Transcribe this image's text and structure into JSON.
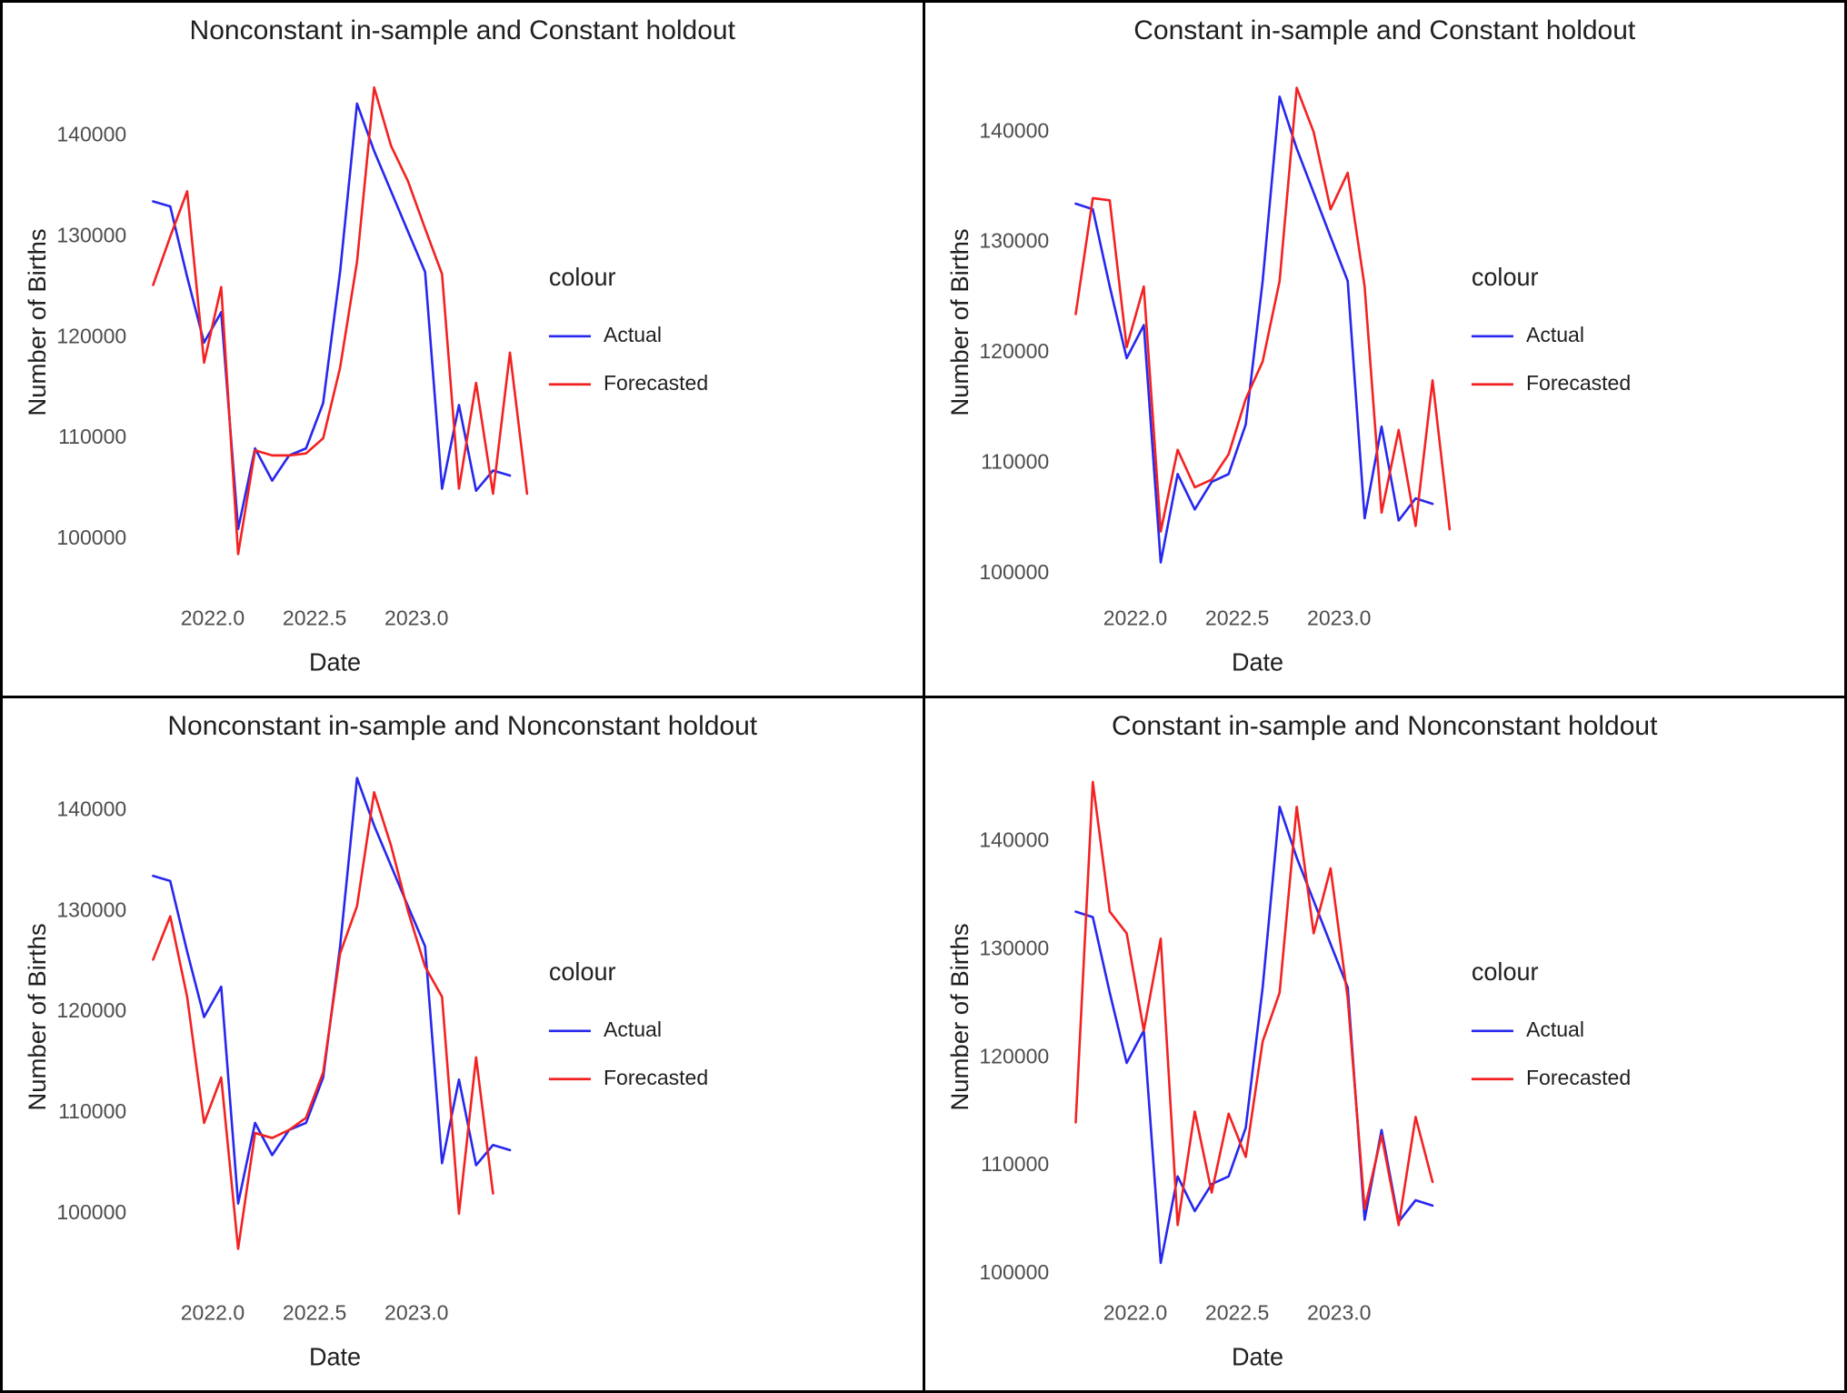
{
  "page": {
    "background": "#ffffff",
    "frame_color": "#000000"
  },
  "text_colors": {
    "title": "#1f1f1f",
    "axis_title": "#1f1f1f",
    "tick_label": "#4d4d4d",
    "legend_title": "#1f1f1f",
    "legend_label": "#1f1f1f"
  },
  "legend": {
    "title": "colour",
    "entries": [
      {
        "label": "Actual",
        "color": "#2727ee"
      },
      {
        "label": "Forecasted",
        "color": "#f32222"
      }
    ]
  },
  "chart_data": [
    {
      "type": "line",
      "title": "Nonconstant in-sample and Constant holdout",
      "xlabel": "Date",
      "ylabel": "Number of Births",
      "legend_title": "colour",
      "legend_position": "right",
      "grid": false,
      "xlim": [
        2021.64,
        2023.56
      ],
      "ylim": [
        95500,
        147500
      ],
      "xticks": [
        2022.0,
        2022.5,
        2023.0
      ],
      "xtick_labels": [
        "2022.0",
        "2022.5",
        "2023.0"
      ],
      "yticks": [
        100000,
        110000,
        120000,
        130000,
        140000
      ],
      "ytick_labels": [
        "100000",
        "110000",
        "120000",
        "130000",
        "140000"
      ],
      "x": [
        2021.708,
        2021.792,
        2021.875,
        2021.958,
        2022.042,
        2022.125,
        2022.208,
        2022.292,
        2022.375,
        2022.458,
        2022.542,
        2022.625,
        2022.708,
        2022.792,
        2022.875,
        2022.958,
        2023.042,
        2023.125,
        2023.208,
        2023.292,
        2023.375,
        2023.458,
        2023.542
      ],
      "series": [
        {
          "name": "Actual",
          "color": "#2727ee",
          "values": [
            133500,
            133000,
            126000,
            119500,
            122500,
            101000,
            109000,
            105800,
            108300,
            109000,
            113500,
            126500,
            143200,
            138500,
            134500,
            130500,
            126500,
            105000,
            113300,
            104800,
            106800,
            106300,
            null
          ]
        },
        {
          "name": "Forecasted",
          "color": "#f32222",
          "values": [
            125200,
            130000,
            134500,
            117500,
            125000,
            98500,
            108800,
            108300,
            108300,
            108500,
            110000,
            117000,
            127500,
            144800,
            139000,
            135500,
            130800,
            126300,
            105000,
            115500,
            104500,
            118500,
            104500
          ]
        }
      ]
    },
    {
      "type": "line",
      "title": "Constant in-sample and Constant holdout",
      "xlabel": "Date",
      "ylabel": "Number of Births",
      "legend_title": "colour",
      "legend_position": "right",
      "grid": false,
      "xlim": [
        2021.64,
        2023.56
      ],
      "ylim": [
        99000,
        146500
      ],
      "xticks": [
        2022.0,
        2022.5,
        2023.0
      ],
      "xtick_labels": [
        "2022.0",
        "2022.5",
        "2023.0"
      ],
      "yticks": [
        100000,
        110000,
        120000,
        130000,
        140000
      ],
      "ytick_labels": [
        "100000",
        "110000",
        "120000",
        "130000",
        "140000"
      ],
      "x": [
        2021.708,
        2021.792,
        2021.875,
        2021.958,
        2022.042,
        2022.125,
        2022.208,
        2022.292,
        2022.375,
        2022.458,
        2022.542,
        2022.625,
        2022.708,
        2022.792,
        2022.875,
        2022.958,
        2023.042,
        2023.125,
        2023.208,
        2023.292,
        2023.375,
        2023.458,
        2023.542
      ],
      "series": [
        {
          "name": "Actual",
          "color": "#2727ee",
          "values": [
            133500,
            133000,
            126000,
            119500,
            122500,
            101000,
            109000,
            105800,
            108300,
            109000,
            113500,
            126500,
            143200,
            138500,
            134500,
            130500,
            126500,
            105000,
            113300,
            104800,
            106800,
            106300,
            null
          ]
        },
        {
          "name": "Forecasted",
          "color": "#f32222",
          "values": [
            123500,
            134000,
            133800,
            120500,
            126000,
            103800,
            111200,
            107800,
            108500,
            110800,
            115800,
            119200,
            126500,
            144000,
            140000,
            133000,
            136300,
            126000,
            105500,
            113000,
            104300,
            117500,
            104000
          ]
        }
      ]
    },
    {
      "type": "line",
      "title": "Nonconstant in-sample and Nonconstant holdout",
      "xlabel": "Date",
      "ylabel": "Number of Births",
      "legend_title": "colour",
      "legend_position": "right",
      "grid": false,
      "xlim": [
        2021.64,
        2023.56
      ],
      "ylim": [
        93500,
        145500
      ],
      "xticks": [
        2022.0,
        2022.5,
        2023.0
      ],
      "xtick_labels": [
        "2022.0",
        "2022.5",
        "2023.0"
      ],
      "yticks": [
        100000,
        110000,
        120000,
        130000,
        140000
      ],
      "ytick_labels": [
        "100000",
        "110000",
        "120000",
        "130000",
        "140000"
      ],
      "x": [
        2021.708,
        2021.792,
        2021.875,
        2021.958,
        2022.042,
        2022.125,
        2022.208,
        2022.292,
        2022.375,
        2022.458,
        2022.542,
        2022.625,
        2022.708,
        2022.792,
        2022.875,
        2022.958,
        2023.042,
        2023.125,
        2023.208,
        2023.292,
        2023.375,
        2023.458,
        2023.542
      ],
      "series": [
        {
          "name": "Actual",
          "color": "#2727ee",
          "values": [
            133500,
            133000,
            126000,
            119500,
            122500,
            101000,
            109000,
            105800,
            108300,
            109000,
            113500,
            126500,
            143200,
            138500,
            134500,
            130500,
            126500,
            105000,
            113300,
            104800,
            106800,
            106300,
            null
          ]
        },
        {
          "name": "Forecasted",
          "color": "#f32222",
          "values": [
            125200,
            129500,
            121500,
            109000,
            113500,
            96500,
            108000,
            107500,
            108300,
            109500,
            114000,
            125800,
            130500,
            141800,
            136500,
            130000,
            124500,
            121500,
            100000,
            115500,
            102000,
            null,
            null
          ]
        }
      ]
    },
    {
      "type": "line",
      "title": "Constant in-sample and Nonconstant holdout",
      "xlabel": "Date",
      "ylabel": "Number of Births",
      "legend_title": "colour",
      "legend_position": "right",
      "grid": false,
      "xlim": [
        2021.64,
        2023.56
      ],
      "ylim": [
        99500,
        148000
      ],
      "xticks": [
        2022.0,
        2022.5,
        2023.0
      ],
      "xtick_labels": [
        "2022.0",
        "2022.5",
        "2023.0"
      ],
      "yticks": [
        100000,
        110000,
        120000,
        130000,
        140000
      ],
      "ytick_labels": [
        "100000",
        "110000",
        "120000",
        "130000",
        "140000"
      ],
      "x": [
        2021.708,
        2021.792,
        2021.875,
        2021.958,
        2022.042,
        2022.125,
        2022.208,
        2022.292,
        2022.375,
        2022.458,
        2022.542,
        2022.625,
        2022.708,
        2022.792,
        2022.875,
        2022.958,
        2023.042,
        2023.125,
        2023.208,
        2023.292,
        2023.375,
        2023.458,
        2023.542
      ],
      "series": [
        {
          "name": "Actual",
          "color": "#2727ee",
          "values": [
            133500,
            133000,
            126000,
            119500,
            122500,
            101000,
            109000,
            105800,
            108300,
            109000,
            113500,
            126500,
            143200,
            138500,
            134500,
            130500,
            126500,
            105000,
            113300,
            104800,
            106800,
            106300,
            null
          ]
        },
        {
          "name": "Forecasted",
          "color": "#f32222",
          "values": [
            114000,
            145500,
            133500,
            131500,
            122500,
            131000,
            104500,
            115000,
            107500,
            114800,
            110800,
            121500,
            126000,
            143200,
            131500,
            137500,
            125500,
            106000,
            112800,
            104500,
            114500,
            108500,
            null
          ]
        }
      ]
    }
  ]
}
